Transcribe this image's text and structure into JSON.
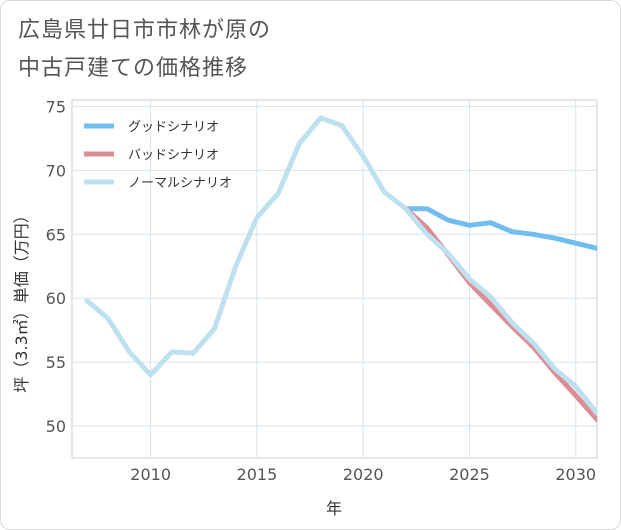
{
  "chart_data": {
    "type": "line",
    "title_line1": "広島県廿日市市林が原の",
    "title_line2": "中古戸建ての価格推移",
    "xlabel": "年",
    "ylabel": "坪（3.3㎡）単価（万円）",
    "xlim": [
      2006.3,
      2031
    ],
    "ylim": [
      47.5,
      75.5
    ],
    "xticks": [
      2010,
      2015,
      2020,
      2025,
      2030
    ],
    "yticks": [
      50,
      55,
      60,
      65,
      70,
      75
    ],
    "legend_position": "top-left",
    "series": [
      {
        "name": "グッドシナリオ",
        "color": "#72bdf0",
        "x": [
          2022,
          2023,
          2024,
          2025,
          2026,
          2027,
          2028,
          2029,
          2030,
          2031
        ],
        "values": [
          67.0,
          67.0,
          66.1,
          65.7,
          65.9,
          65.2,
          65.0,
          64.7,
          64.3,
          63.9
        ]
      },
      {
        "name": "バッドシナリオ",
        "color": "#dc8e94",
        "x": [
          2022,
          2023,
          2024,
          2025,
          2026,
          2027,
          2028,
          2029,
          2030,
          2031
        ],
        "values": [
          67.0,
          65.5,
          63.4,
          61.2,
          59.5,
          57.8,
          56.2,
          54.2,
          52.4,
          50.5
        ]
      },
      {
        "name": "ノーマルシナリオ",
        "color": "#bfe1ef",
        "x": [
          2007,
          2008,
          2009,
          2010,
          2011,
          2012,
          2013,
          2014,
          2015,
          2016,
          2017,
          2018,
          2019,
          2020,
          2021,
          2022,
          2023,
          2024,
          2025,
          2026,
          2027,
          2028,
          2029,
          2030,
          2031
        ],
        "values": [
          59.8,
          58.4,
          55.8,
          54.0,
          55.8,
          55.7,
          57.6,
          62.5,
          66.3,
          68.2,
          72.1,
          74.1,
          73.5,
          71.1,
          68.3,
          67.0,
          65.0,
          63.5,
          61.5,
          60.1,
          58.1,
          56.5,
          54.5,
          53.1,
          51.0
        ]
      }
    ]
  }
}
